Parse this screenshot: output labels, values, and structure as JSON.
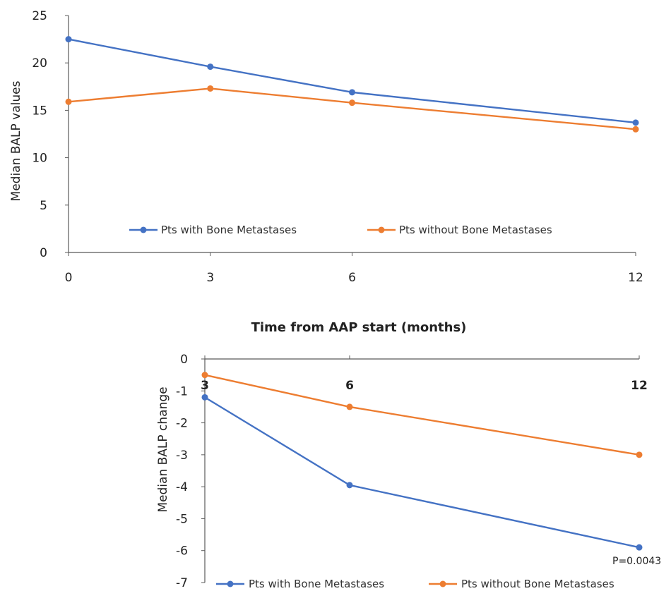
{
  "chart_data": [
    {
      "type": "line",
      "ylabel": "Median BALP values",
      "xlabel": "Time from AAP start (months)",
      "x": [
        0,
        3,
        6,
        12
      ],
      "x_tick_labels": [
        "0",
        "3",
        "6",
        "12"
      ],
      "y_ticks": [
        0,
        5,
        10,
        15,
        20,
        25
      ],
      "ylim": [
        0,
        25
      ],
      "xlim": [
        0,
        12
      ],
      "grid": false,
      "legend_position": "bottom-inside",
      "series": [
        {
          "name": "Pts with Bone Metastases",
          "color": "#4472C4",
          "values": [
            22.5,
            19.6,
            16.9,
            13.7
          ]
        },
        {
          "name": "Pts without Bone Metastases",
          "color": "#ED7D31",
          "values": [
            15.9,
            17.3,
            15.8,
            13.0
          ]
        }
      ]
    },
    {
      "type": "line",
      "ylabel": "Median BALP change",
      "x": [
        3,
        6,
        12
      ],
      "x_tick_labels": [
        "3",
        "6",
        "12"
      ],
      "y_ticks": [
        0,
        -1,
        -2,
        -3,
        -4,
        -5,
        -6,
        -7
      ],
      "ylim": [
        -7,
        0
      ],
      "xlim": [
        3,
        12
      ],
      "grid": false,
      "legend_position": "bottom",
      "annotation": "P=0.0043",
      "series": [
        {
          "name": "Pts with Bone Metastases",
          "color": "#4472C4",
          "values": [
            -1.2,
            -3.95,
            -5.9
          ]
        },
        {
          "name": "Pts without Bone Metastases",
          "color": "#ED7D31",
          "values": [
            -0.5,
            -1.5,
            -3.0
          ]
        }
      ]
    }
  ]
}
